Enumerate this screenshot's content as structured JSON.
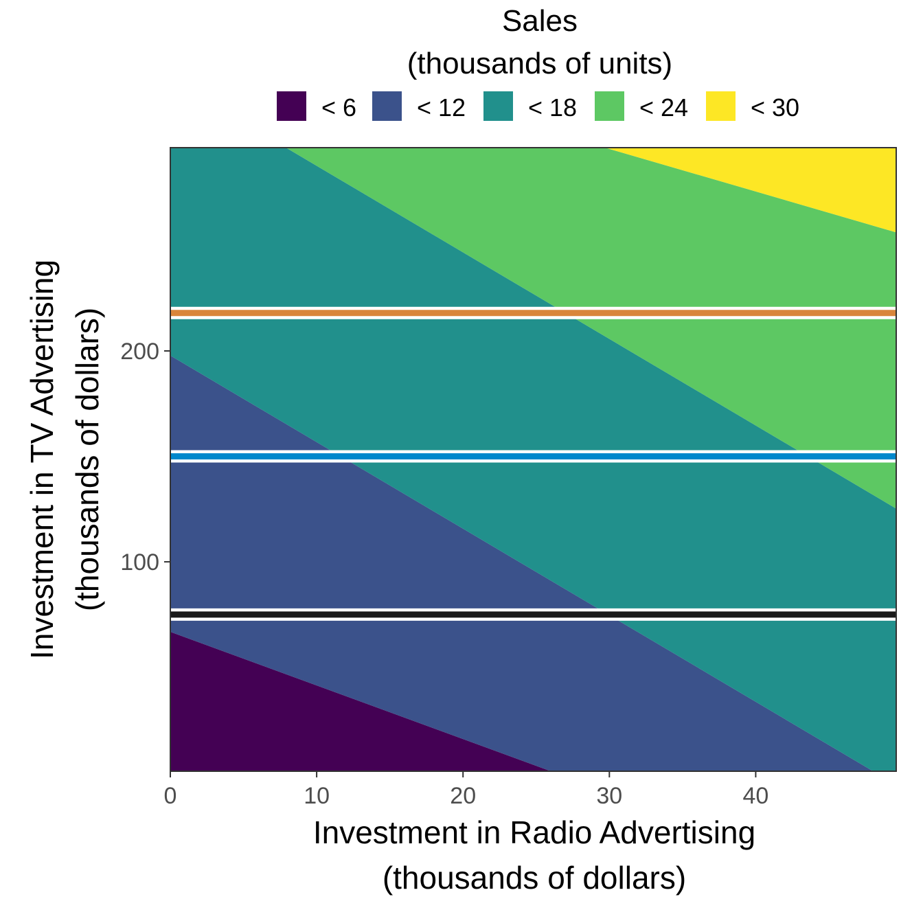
{
  "chart_data": {
    "type": "heatmap",
    "title": "",
    "legend": {
      "title_line1": "Sales",
      "title_line2": "(thousands of units)",
      "placement": "top",
      "items": [
        {
          "label": "< 6",
          "color": "#440154"
        },
        {
          "label": "< 12",
          "color": "#3B528B"
        },
        {
          "label": "< 18",
          "color": "#21908C"
        },
        {
          "label": "< 24",
          "color": "#5DC863"
        },
        {
          "label": "< 30",
          "color": "#FDE725"
        }
      ]
    },
    "xlabel_line1": "Investment in Radio Advertising",
    "xlabel_line2": "(thousands of dollars)",
    "ylabel_line1": "Investment in TV Advertising",
    "ylabel_line2": "(thousands of dollars)",
    "xlim": [
      0,
      49.6
    ],
    "ylim": [
      0.7,
      296.4
    ],
    "x_ticks": [
      0,
      10,
      20,
      30,
      40
    ],
    "y_ticks": [
      100,
      200
    ],
    "grid": false,
    "surface": {
      "model": "sales = intercept + tv_coef * TV + radio_coef * Radio",
      "intercept": 2.94,
      "tv_coef": 0.0458,
      "radio_coef": 0.188,
      "breaks": [
        0,
        6,
        12,
        18,
        24,
        30
      ]
    },
    "reference_lines": [
      {
        "axis": "y",
        "value": 75,
        "color": "#1A1A1A"
      },
      {
        "axis": "y",
        "value": 150,
        "color": "#0088CC"
      },
      {
        "axis": "y",
        "value": 218,
        "color": "#D9853B"
      }
    ]
  }
}
